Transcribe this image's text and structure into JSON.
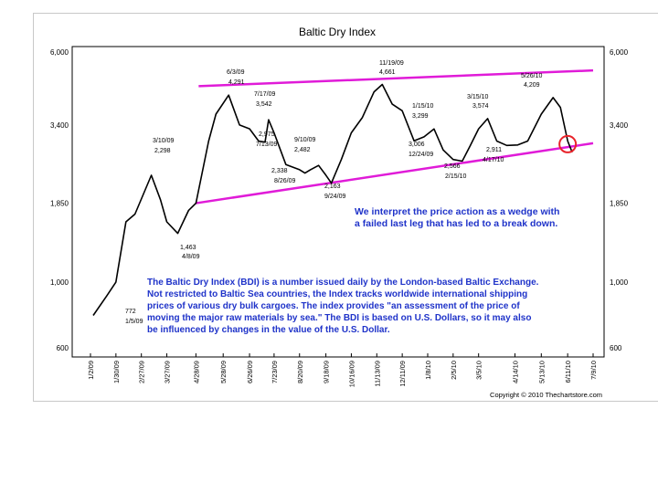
{
  "chart_data": {
    "type": "line",
    "title": "Baltic Dry Index",
    "y_scale": "log",
    "ylim": [
      600,
      6000
    ],
    "yticks": [
      "6,000",
      "3,400",
      "1,850",
      "1,000",
      "600"
    ],
    "ytick_values": [
      6000,
      3400,
      1850,
      1000,
      600
    ],
    "xticks": [
      "1/2/09",
      "1/30/09",
      "2/27/09",
      "3/27/09",
      "4/28/09",
      "5/28/09",
      "6/26/09",
      "7/23/09",
      "8/20/09",
      "9/18/09",
      "10/16/09",
      "11/13/09",
      "12/11/09",
      "1/8/10",
      "2/5/10",
      "3/5/10",
      "4/14/10",
      "5/13/10",
      "6/11/10",
      "7/9/10"
    ],
    "grid": false,
    "series": [
      {
        "color": "#000000",
        "x": [
          "1/5/09",
          "1/20/09",
          "1/30/09",
          "2/10/09",
          "2/20/09",
          "3/10/09",
          "3/20/09",
          "3/27/09",
          "4/8/09",
          "4/20/09",
          "4/28/09",
          "5/12/09",
          "5/20/09",
          "6/3/09",
          "6/15/09",
          "6/26/09",
          "7/6/09",
          "7/13/09",
          "7/17/09",
          "7/23/09",
          "8/5/09",
          "8/20/09",
          "8/26/09",
          "9/1/09",
          "9/10/09",
          "9/18/09",
          "9/24/09",
          "10/5/09",
          "10/16/09",
          "10/28/09",
          "11/10/09",
          "11/19/09",
          "11/30/09",
          "12/11/09",
          "12/24/09",
          "1/4/10",
          "1/15/10",
          "1/25/10",
          "2/5/10",
          "2/15/10",
          "2/24/10",
          "3/5/10",
          "3/15/10",
          "3/25/10",
          "4/5/10",
          "4/17/10",
          "4/28/10",
          "5/13/10",
          "5/26/10",
          "6/3/10",
          "6/11/10",
          "6/16/10"
        ],
        "values": [
          772,
          900,
          1000,
          1600,
          1700,
          2298,
          1900,
          1600,
          1463,
          1750,
          1850,
          3000,
          3700,
          4291,
          3400,
          3300,
          3000,
          2975,
          3542,
          3200,
          2500,
          2400,
          2338,
          2400,
          2482,
          2300,
          2163,
          2600,
          3200,
          3600,
          4400,
          4661,
          4000,
          3800,
          3006,
          3100,
          3299,
          2800,
          2600,
          2566,
          2900,
          3300,
          3574,
          3000,
          2900,
          2911,
          3000,
          3700,
          4209,
          3900,
          3000,
          2750
        ]
      }
    ],
    "wedge_lines": {
      "color": "#e01bd8",
      "upper": {
        "x": [
          "5/1/09",
          "7/9/10"
        ],
        "y": [
          4600,
          5200
        ]
      },
      "lower": {
        "x": [
          "4/28/09",
          "7/9/10"
        ],
        "y": [
          1850,
          2950
        ]
      }
    },
    "annotations": [
      {
        "text": "772",
        "date": "1/5/09"
      },
      {
        "text": "1/5/09"
      },
      {
        "text": "3/10/09"
      },
      {
        "text": "2,298"
      },
      {
        "text": "1,463"
      },
      {
        "text": "4/8/09"
      },
      {
        "text": "6/3/09"
      },
      {
        "text": "4,291"
      },
      {
        "text": "7/17/09"
      },
      {
        "text": "3,542"
      },
      {
        "text": "2,975"
      },
      {
        "text": "7/13/09"
      },
      {
        "text": "9/10/09"
      },
      {
        "text": "2,482"
      },
      {
        "text": "2,338"
      },
      {
        "text": "8/26/09"
      },
      {
        "text": "2,163"
      },
      {
        "text": "9/24/09"
      },
      {
        "text": "11/19/09"
      },
      {
        "text": "4,661"
      },
      {
        "text": "1/15/10"
      },
      {
        "text": "3,299"
      },
      {
        "text": "3,006"
      },
      {
        "text": "12/24/09"
      },
      {
        "text": "3/15/10"
      },
      {
        "text": "3,574"
      },
      {
        "text": "2,566"
      },
      {
        "text": "2/15/10"
      },
      {
        "text": "2,911"
      },
      {
        "text": "4/17/10"
      },
      {
        "text": "5/26/10"
      },
      {
        "text": "4,209"
      }
    ],
    "break_marker_color": "#e8232a",
    "commentary_blue": "We interpret the price action as a wedge with\na failed last leg that has led to a break down.",
    "commentary_box": "The Baltic Dry Index (BDI) is a number issued daily by the London-based Baltic Exchange.\nNot restricted to Baltic Sea countries, the Index tracks worldwide international shipping\nprices of various dry bulk cargoes.  The index provides \"an assessment of the price of\nmoving the major raw materials by sea.\"  The BDI is based on U.S. Dollars, so it may also\nbe influenced by changes in the value of the U.S. Dollar.",
    "text_color": "#1f33c9",
    "copyright": "Copyright © 2010 Thechartstore.com"
  }
}
